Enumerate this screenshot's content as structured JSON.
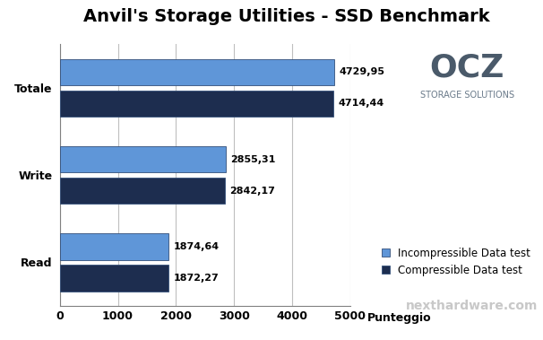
{
  "chart_data": {
    "type": "bar",
    "orientation": "horizontal",
    "title": "Anvil's Storage Utilities - SSD Benchmark",
    "x_label": "Punteggio",
    "categories": [
      "Totale",
      "Write",
      "Read"
    ],
    "series": [
      {
        "name": "Incompressible Data test",
        "color": "#5f96d8",
        "values": [
          4729.95,
          2855.31,
          1874.64
        ],
        "value_labels": [
          "4729,95",
          "2855,31",
          "1874,64"
        ]
      },
      {
        "name": "Compressible Data test",
        "color": "#1d2d4f",
        "values": [
          4714.44,
          2842.17,
          1872.27
        ],
        "value_labels": [
          "4714,44",
          "2842,17",
          "1872,27"
        ]
      }
    ],
    "xlim": [
      0,
      5000
    ],
    "xticks": [
      0,
      1000,
      2000,
      3000,
      4000,
      5000
    ],
    "grid": true,
    "legend": "lower right",
    "data_labels": true,
    "annotations": [
      "OCZ",
      "STORAGE SOLUTIONS",
      "nexthardware.com"
    ]
  }
}
